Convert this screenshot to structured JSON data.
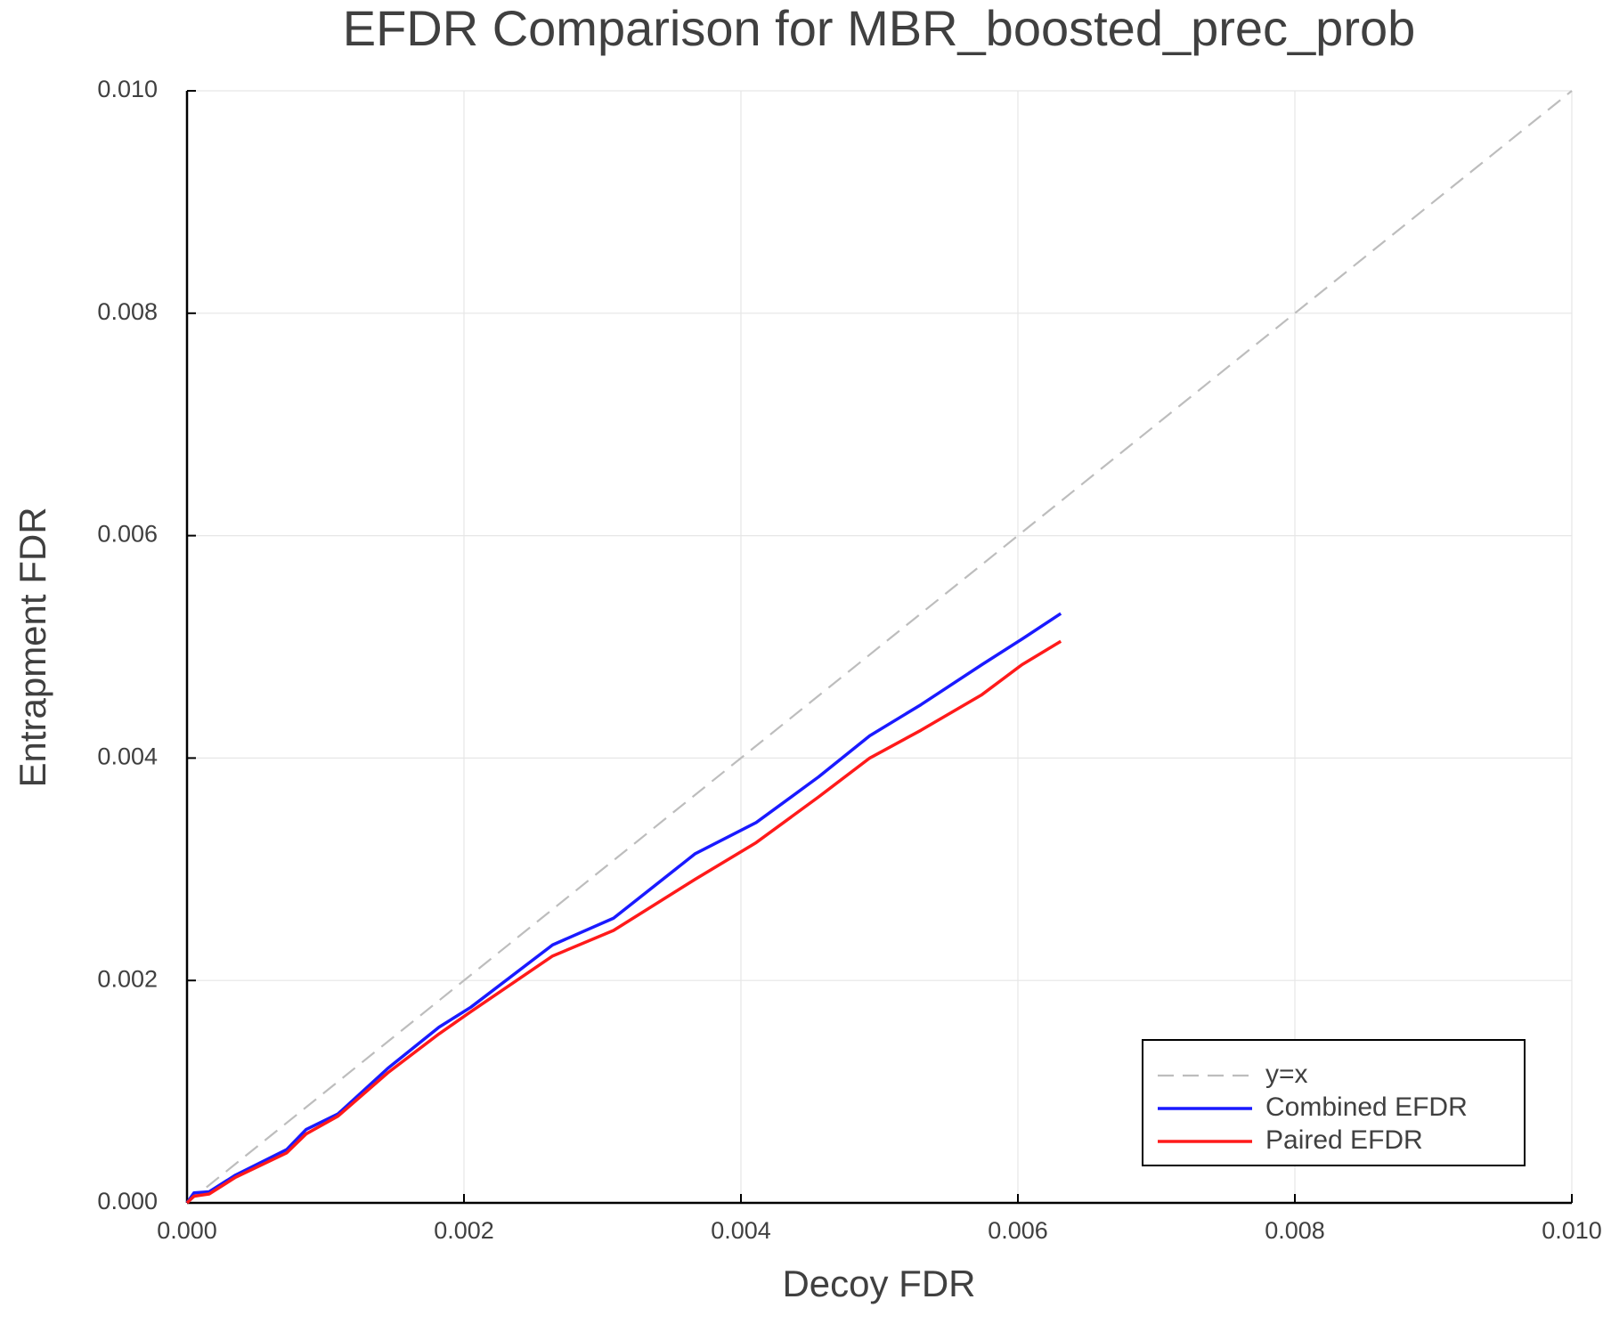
{
  "chart_data": {
    "type": "line",
    "title": "EFDR Comparison for MBR_boosted_prec_prob",
    "x_label": "Decoy FDR",
    "y_label": "Entrapment FDR",
    "xlim": [
      0,
      0.01
    ],
    "ylim": [
      0,
      0.01
    ],
    "xticks": [
      {
        "value": 0,
        "label": "0.000"
      },
      0.002,
      0.004,
      0.006,
      0.008,
      {
        "value": 0.01,
        "label": "0.010"
      }
    ],
    "yticks": [
      {
        "value": 0,
        "label": "0.000"
      },
      0.002,
      0.004,
      0.006,
      0.008,
      {
        "value": 0.01,
        "label": "0.010"
      }
    ],
    "grid": true,
    "legend": "lower right",
    "series": [
      {
        "name": "y=x",
        "color": "#bdbdbd",
        "dashed": true,
        "x": [
          0,
          0.01
        ],
        "values": [
          0,
          0.01
        ]
      },
      {
        "name": "Combined EFDR",
        "color": "#1a1aff",
        "dashed": false,
        "x": [
          0,
          5e-05,
          0.00016,
          0.00035,
          0.00072,
          0.00086,
          0.00109,
          0.00145,
          0.00182,
          0.00205,
          0.00264,
          0.00308,
          0.00367,
          0.00411,
          0.00456,
          0.00493,
          0.0053,
          0.00574,
          0.00603,
          0.00631
        ],
        "values": [
          0,
          9e-05,
          0.0001,
          0.00025,
          0.00048,
          0.00066,
          0.0008,
          0.00121,
          0.00158,
          0.00176,
          0.00232,
          0.00256,
          0.00314,
          0.00342,
          0.00383,
          0.0042,
          0.00448,
          0.00484,
          0.00507,
          0.0053
        ]
      },
      {
        "name": "Paired EFDR",
        "color": "#ff1a1a",
        "dashed": false,
        "x": [
          0,
          5e-05,
          0.00016,
          0.00035,
          0.00072,
          0.00086,
          0.00109,
          0.00145,
          0.00182,
          0.00205,
          0.00264,
          0.00308,
          0.00367,
          0.00411,
          0.00456,
          0.00493,
          0.0053,
          0.00574,
          0.00603,
          0.00631
        ],
        "values": [
          0,
          6e-05,
          8e-05,
          0.00023,
          0.00045,
          0.00062,
          0.00078,
          0.00117,
          0.00152,
          0.00172,
          0.00222,
          0.00245,
          0.00291,
          0.00324,
          0.00365,
          0.004,
          0.00425,
          0.00457,
          0.00484,
          0.00505
        ]
      }
    ]
  }
}
